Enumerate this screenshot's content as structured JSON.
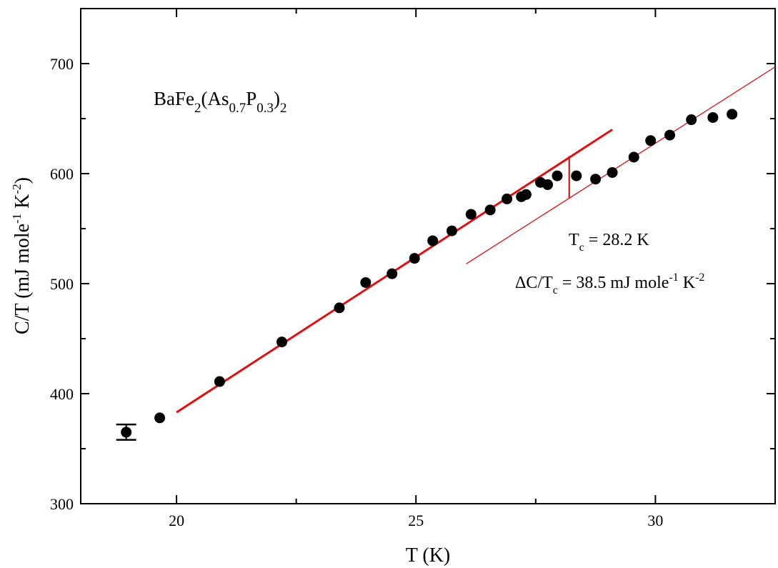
{
  "chart_data": {
    "type": "scatter",
    "title": "",
    "xlabel": "T (K)",
    "ylabel_parts": {
      "base": "C/T (mJ mole",
      "sup1": "-1",
      "mid": " K",
      "sup2": "-2",
      "end": ")"
    },
    "xlim": [
      18,
      32.5
    ],
    "ylim": [
      300,
      750
    ],
    "x_ticks": [
      20,
      25,
      30
    ],
    "x_minor_ticks": [
      22.5,
      27.5
    ],
    "y_ticks": [
      300,
      400,
      500,
      600,
      700
    ],
    "y_minor_ticks": [
      350,
      450,
      550,
      650
    ],
    "grid": false,
    "legend": "none",
    "colors": {
      "data": "#000000",
      "fit": "#e01010"
    },
    "series": [
      {
        "x": [
          19.65,
          20.9,
          22.2,
          23.4,
          23.95,
          24.5,
          24.97,
          25.35,
          25.75,
          26.15,
          26.55,
          26.9,
          27.2,
          27.3,
          27.6,
          27.75,
          27.95,
          28.35,
          28.75,
          29.1,
          29.55,
          29.9,
          30.3,
          30.75,
          31.2,
          31.6
        ],
        "y": [
          378,
          411,
          447,
          478,
          501,
          509,
          523,
          539,
          548,
          563,
          567,
          577,
          579,
          581,
          592,
          590,
          598,
          598,
          595,
          601,
          615,
          630,
          635,
          649,
          651,
          654
        ]
      }
    ],
    "error_bar_point": {
      "x": 18.95,
      "y": 365,
      "yerr": 7
    },
    "fit_lines": [
      {
        "style": "thick",
        "x": [
          20.0,
          29.1
        ],
        "y": [
          383,
          640
        ]
      },
      {
        "style": "thin",
        "x": [
          26.05,
          32.5
        ],
        "y": [
          518,
          697
        ]
      }
    ],
    "tc_marker": {
      "x": 28.2,
      "y_top": 616,
      "y_bottom": 578
    },
    "annotations": {
      "formula": {
        "t1": "BaFe",
        "s1": "2",
        "t2": "(As",
        "s2": "0.7",
        "t3": "P",
        "s3": "0.3",
        "t4": ")",
        "s4": "2"
      },
      "tc": {
        "t1": "T",
        "s1": "c",
        "t2": " = 28.2 K"
      },
      "dc": {
        "t1": "ΔC/T",
        "s1": "c",
        "t2": " = 38.5 mJ mole",
        "s2": "-1",
        "t3": " K",
        "s3": "-2"
      }
    }
  }
}
